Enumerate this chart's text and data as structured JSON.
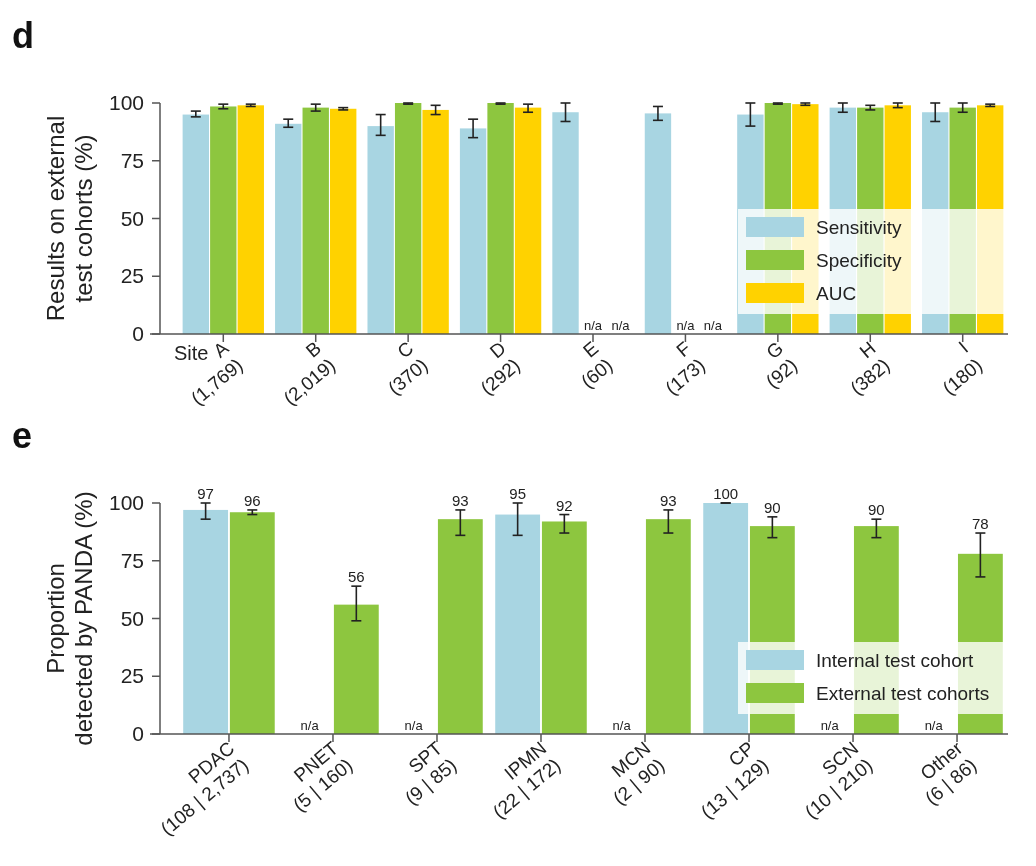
{
  "chart_data": [
    {
      "type": "bar",
      "title": "d",
      "ylabel": "Results on external\ntest cohorts (%)",
      "xlabel": "Site",
      "categories": [
        "A\n(1,769)",
        "B\n(2,019)",
        "C\n(370)",
        "D\n(292)",
        "E\n(60)",
        "F\n(173)",
        "G\n(92)",
        "H\n(382)",
        "I\n(180)"
      ],
      "series": [
        {
          "name": "Sensitivity",
          "color": "#a8d5e2",
          "values": [
            95,
            91,
            90,
            89,
            96,
            95.5,
            95,
            98,
            96
          ],
          "errors": [
            [
              94,
              96.5
            ],
            [
              89.5,
              93
            ],
            [
              86,
              95
            ],
            [
              85,
              93
            ],
            [
              92,
              100
            ],
            [
              92.5,
              98.5
            ],
            [
              90,
              100
            ],
            [
              96,
              100
            ],
            [
              92,
              100
            ]
          ]
        },
        {
          "name": "Specificity",
          "color": "#8dc63f",
          "values": [
            98.5,
            98,
            100,
            100,
            null,
            null,
            100,
            98,
            98
          ],
          "errors": [
            [
              97.5,
              99.5
            ],
            [
              96.5,
              99.5
            ],
            [
              99.5,
              100
            ],
            [
              99.5,
              100
            ],
            null,
            null,
            [
              99.5,
              100
            ],
            [
              97,
              99
            ],
            [
              96,
              100
            ]
          ]
        },
        {
          "name": "AUC",
          "color": "#ffd200",
          "values": [
            99,
            97.5,
            97,
            98,
            null,
            null,
            99.5,
            99,
            99
          ],
          "errors": [
            [
              98.5,
              99.5
            ],
            [
              97,
              98
            ],
            [
              95,
              99
            ],
            [
              96,
              99.5
            ],
            null,
            null,
            [
              99,
              100
            ],
            [
              98,
              100
            ],
            [
              98.5,
              99.5
            ]
          ]
        }
      ],
      "ylim": [
        0,
        100
      ],
      "yticks": [
        0,
        25,
        50,
        75,
        100
      ],
      "legend": "bottom right",
      "annotations": [
        "n/a",
        "n/a",
        "n/a",
        "n/a"
      ]
    },
    {
      "type": "bar",
      "title": "e",
      "ylabel": "Proportion\ndetected by PANDA (%)",
      "categories": [
        "PDAC\n(108 | 2,737)",
        "PNET\n(5 | 160)",
        "SPT\n(9 | 85)",
        "IPMN\n(22 | 172)",
        "MCN\n(2 | 90)",
        "CP\n(13 | 129)",
        "SCN\n(10 | 210)",
        "Other\n(6 | 86)"
      ],
      "series": [
        {
          "name": "Internal test cohort",
          "color": "#a8d5e2",
          "values": [
            97,
            null,
            null,
            95,
            null,
            100,
            null,
            null
          ],
          "errors": [
            [
              93,
              100
            ],
            null,
            null,
            [
              86,
              100
            ],
            null,
            [
              100,
              100
            ],
            null,
            null
          ]
        },
        {
          "name": "External test cohorts",
          "color": "#8dc63f",
          "values": [
            96,
            56,
            93,
            92,
            93,
            90,
            90,
            78
          ],
          "errors": [
            [
              95,
              97
            ],
            [
              49,
              64
            ],
            [
              86,
              97
            ],
            [
              87,
              95
            ],
            [
              87,
              97
            ],
            [
              85,
              94
            ],
            [
              85,
              93
            ],
            [
              68,
              87
            ]
          ]
        }
      ],
      "ylim": [
        0,
        100
      ],
      "yticks": [
        0,
        25,
        50,
        75,
        100
      ],
      "legend": "bottom right",
      "data_labels": true,
      "annotations": [
        "n/a",
        "n/a",
        "n/a",
        "n/a",
        "n/a"
      ]
    }
  ]
}
